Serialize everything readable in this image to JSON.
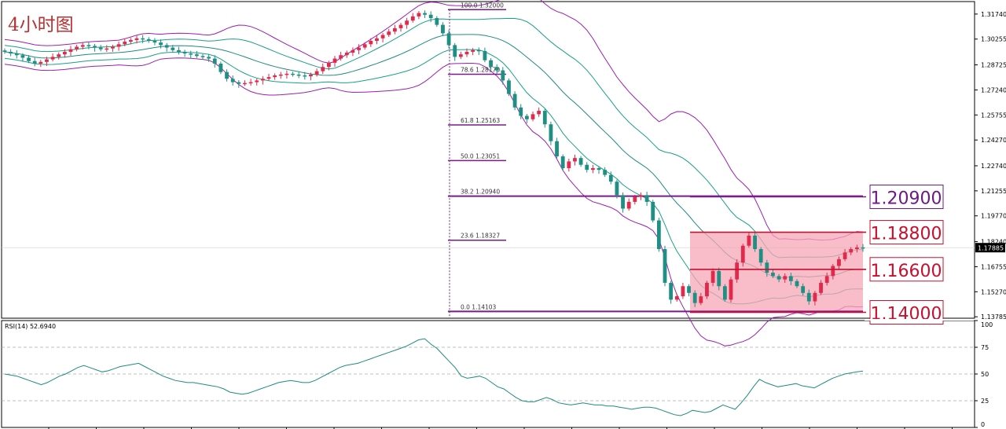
{
  "colors": {
    "bull": "#e0294b",
    "bear": "#1f8f84",
    "band_outer": "#9b1fb0",
    "band_mid": "#1e8c80",
    "band_inner": "#1aa088",
    "fib": "#7a1a8c",
    "box_fill": "#f5a7b6",
    "rsi_line": "#1e8c80",
    "label_purple": "#6b1a86",
    "label_red": "#c8102e"
  },
  "chart_data": [
    {
      "type": "candlestick",
      "title": "4小时图",
      "ylim": [
        1.137,
        1.3248
      ],
      "y_ticks": [
        "1.31740",
        "1.30255",
        "1.28725",
        "1.27240",
        "1.25755",
        "1.24270",
        "1.22740",
        "1.21255",
        "1.19770",
        "1.18240",
        "1.16755",
        "1.15270",
        "1.13785"
      ],
      "current_price": "1.17885",
      "fib_levels": [
        {
          "ratio": "100.0",
          "price": "1.32000"
        },
        {
          "ratio": "78.6",
          "price": "1.28170"
        },
        {
          "ratio": "61.8",
          "price": "1.25163"
        },
        {
          "ratio": "50.0",
          "price": "1.23051"
        },
        {
          "ratio": "38.2",
          "price": "1.20940"
        },
        {
          "ratio": "23.6",
          "price": "1.18327"
        },
        {
          "ratio": "0.0",
          "price": "1.14103"
        }
      ],
      "levels": [
        {
          "label": "1.20900",
          "price": 1.209,
          "color": "purple"
        },
        {
          "label": "1.18800",
          "price": 1.188,
          "color": "red"
        },
        {
          "label": "1.16600",
          "price": 1.166,
          "color": "red"
        },
        {
          "label": "1.14000",
          "price": 1.1405,
          "color": "red"
        }
      ],
      "range_box": {
        "top": 1.188,
        "bottom": 1.14
      },
      "closes": [
        1.295,
        1.294,
        1.293,
        1.2915,
        1.2895,
        1.288,
        1.289,
        1.2905,
        1.292,
        1.2935,
        1.295,
        1.2965,
        1.298,
        1.299,
        1.2985,
        1.2975,
        1.2965,
        1.297,
        1.298,
        1.2995,
        1.301,
        1.302,
        1.303,
        1.3025,
        1.3015,
        1.3005,
        1.299,
        1.2975,
        1.296,
        1.295,
        1.294,
        1.2935,
        1.2925,
        1.292,
        1.291,
        1.288,
        1.283,
        1.279,
        1.277,
        1.276,
        1.2765,
        1.277,
        1.278,
        1.279,
        1.28,
        1.281,
        1.2815,
        1.282,
        1.2815,
        1.281,
        1.2805,
        1.2815,
        1.2835,
        1.286,
        1.2885,
        1.291,
        1.293,
        1.2945,
        1.296,
        1.2975,
        1.2995,
        1.3015,
        1.303,
        1.305,
        1.307,
        1.309,
        1.311,
        1.3135,
        1.316,
        1.318,
        1.317,
        1.315,
        1.311,
        1.306,
        1.299,
        1.292,
        1.2935,
        1.295,
        1.296,
        1.2955,
        1.29,
        1.286,
        1.284,
        1.278,
        1.27,
        1.262,
        1.257,
        1.255,
        1.258,
        1.26,
        1.252,
        1.242,
        1.233,
        1.226,
        1.23,
        1.232,
        1.228,
        1.225,
        1.226,
        1.225,
        1.222,
        1.218,
        1.21,
        1.202,
        1.206,
        1.209,
        1.21,
        1.206,
        1.195,
        1.178,
        1.158,
        1.148,
        1.15,
        1.156,
        1.152,
        1.146,
        1.15,
        1.158,
        1.165,
        1.156,
        1.148,
        1.16,
        1.17,
        1.18,
        1.186,
        1.178,
        1.17,
        1.164,
        1.162,
        1.16,
        1.162,
        1.159,
        1.156,
        1.152,
        1.147,
        1.152,
        1.158,
        1.162,
        1.168,
        1.172,
        1.176,
        1.178,
        1.179,
        1.1788
      ],
      "bollinger_visual": "outer, middle and inner envelope bands following price",
      "indicator": {
        "name": "RSI(14) 52.6940",
        "ylim": [
          0,
          100
        ],
        "y_ticks": [
          "100",
          "75",
          "50",
          "25",
          "0"
        ],
        "levels": [
          75,
          50,
          25
        ],
        "values": [
          50,
          49,
          48,
          46,
          44,
          42,
          40,
          42,
          45,
          48,
          50,
          53,
          56,
          58,
          56,
          54,
          52,
          53,
          55,
          57,
          58,
          59,
          60,
          57,
          54,
          51,
          48,
          46,
          44,
          43,
          42,
          42,
          41,
          40,
          39,
          38,
          36,
          33,
          32,
          31,
          32,
          34,
          36,
          38,
          40,
          42,
          43,
          44,
          43,
          42,
          42,
          44,
          47,
          50,
          53,
          56,
          58,
          59,
          60,
          62,
          64,
          66,
          68,
          70,
          72,
          74,
          76,
          79,
          82,
          83,
          78,
          74,
          68,
          62,
          56,
          48,
          46,
          47,
          48,
          46,
          42,
          38,
          36,
          32,
          28,
          25,
          24,
          24,
          26,
          28,
          26,
          23,
          22,
          21,
          22,
          23,
          22,
          21,
          21,
          20,
          20,
          19,
          18,
          17,
          18,
          19,
          19,
          18,
          16,
          14,
          12,
          11,
          13,
          16,
          15,
          14,
          15,
          18,
          21,
          19,
          17,
          23,
          30,
          38,
          45,
          42,
          40,
          38,
          39,
          40,
          41,
          39,
          38,
          37,
          40,
          43,
          46,
          48,
          50,
          51,
          52,
          52.7
        ]
      }
    }
  ]
}
